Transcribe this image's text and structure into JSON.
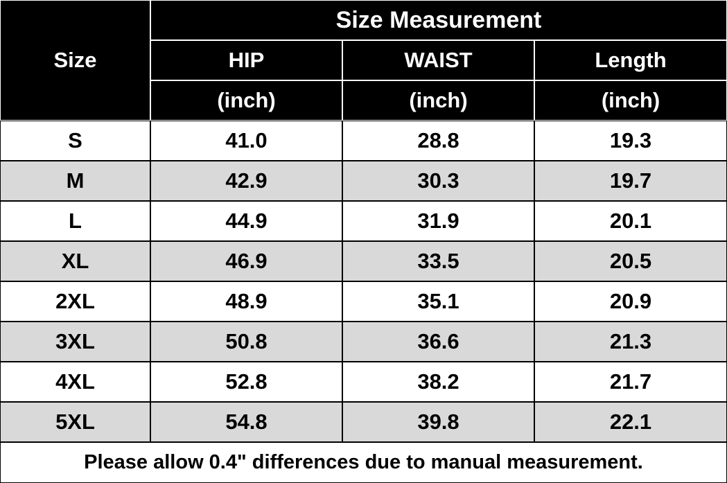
{
  "header": {
    "title": "Size Measurement",
    "size_label": "Size",
    "columns": [
      {
        "name": "HIP",
        "unit": "(inch)"
      },
      {
        "name": "WAIST",
        "unit": "(inch)"
      },
      {
        "name": "Length",
        "unit": "(inch)"
      }
    ]
  },
  "table": {
    "rows": [
      [
        "S",
        "41.0",
        "28.8",
        "19.3"
      ],
      [
        "M",
        "42.9",
        "30.3",
        "19.7"
      ],
      [
        "L",
        "44.9",
        "31.9",
        "20.1"
      ],
      [
        "XL",
        "46.9",
        "33.5",
        "20.5"
      ],
      [
        "2XL",
        "48.9",
        "35.1",
        "20.9"
      ],
      [
        "3XL",
        "50.8",
        "36.6",
        "21.3"
      ],
      [
        "4XL",
        "52.8",
        "38.2",
        "21.7"
      ],
      [
        "5XL",
        "54.8",
        "39.8",
        "22.1"
      ]
    ]
  },
  "footer": {
    "note": "Please allow 0.4\" differences due to manual measurement."
  }
}
